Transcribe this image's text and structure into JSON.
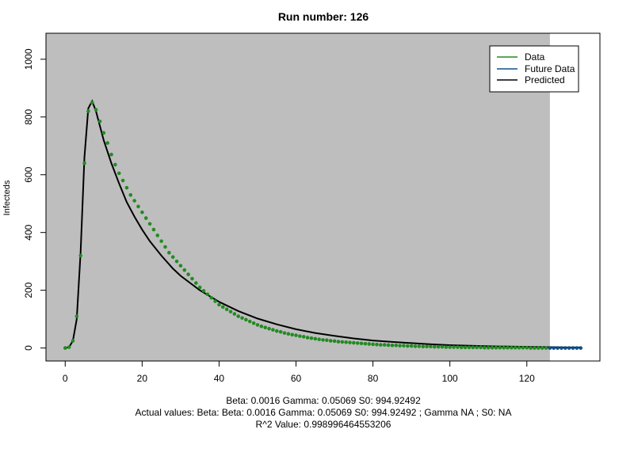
{
  "chart_data": {
    "type": "scatter",
    "title": "Run number:  126",
    "xlabel": "",
    "ylabel": "Infecteds",
    "xlim": [
      -5,
      139
    ],
    "ylim": [
      -45,
      1090
    ],
    "xticks": [
      0,
      20,
      40,
      60,
      80,
      100,
      120
    ],
    "yticks": [
      0,
      200,
      400,
      600,
      800,
      1000
    ],
    "shaded_region_x": [
      -5,
      126
    ],
    "colors": {
      "shading": "#bebebe",
      "data": "#228b22",
      "future": "#104e8b",
      "predicted": "#000000"
    },
    "legend": {
      "position": "top-right",
      "entries": [
        "Data",
        "Future Data",
        "Predicted"
      ]
    },
    "series": [
      {
        "name": "Data",
        "x": [
          0,
          1,
          2,
          3,
          4,
          5,
          6,
          7,
          8,
          9,
          10,
          11,
          12,
          13,
          14,
          15,
          16,
          17,
          18,
          19,
          20,
          21,
          22,
          23,
          24,
          25,
          26,
          27,
          28,
          29,
          30,
          31,
          32,
          33,
          34,
          35,
          36,
          37,
          38,
          39,
          40,
          41,
          42,
          43,
          44,
          45,
          46,
          47,
          48,
          49,
          50,
          51,
          52,
          53,
          54,
          55,
          56,
          57,
          58,
          59,
          60,
          61,
          62,
          63,
          64,
          65,
          66,
          67,
          68,
          69,
          70,
          71,
          72,
          73,
          74,
          75,
          76,
          77,
          78,
          79,
          80,
          81,
          82,
          83,
          84,
          85,
          86,
          87,
          88,
          89,
          90,
          91,
          92,
          93,
          94,
          95,
          96,
          97,
          98,
          99,
          100,
          101,
          102,
          103,
          104,
          105,
          106,
          107,
          108,
          109,
          110,
          111,
          112,
          113,
          114,
          115,
          116,
          117,
          118,
          119,
          120,
          121,
          122,
          123,
          124,
          125
        ],
        "values": [
          0,
          3,
          25,
          110,
          320,
          640,
          820,
          850,
          825,
          785,
          745,
          710,
          670,
          635,
          605,
          580,
          555,
          530,
          510,
          490,
          470,
          450,
          430,
          410,
          390,
          370,
          350,
          330,
          315,
          300,
          285,
          270,
          255,
          240,
          225,
          210,
          198,
          186,
          174,
          162,
          150,
          142,
          134,
          126,
          118,
          110,
          104,
          98,
          92,
          86,
          80,
          75,
          71,
          67,
          63,
          59,
          56,
          52,
          49,
          46,
          44,
          41,
          39,
          36,
          34,
          32,
          30,
          28,
          27,
          25,
          24,
          22,
          21,
          20,
          19,
          18,
          17,
          16,
          15,
          14,
          13,
          12,
          11,
          11,
          10,
          9,
          9,
          8,
          8,
          7,
          7,
          6,
          6,
          5,
          5,
          5,
          4,
          4,
          4,
          3,
          3,
          3,
          3,
          2,
          2,
          2,
          2,
          2,
          2,
          1,
          1,
          1,
          1,
          1,
          1,
          1,
          1,
          1,
          1,
          1,
          1,
          0,
          0,
          0,
          0,
          0
        ]
      },
      {
        "name": "Future Data",
        "x": [
          126,
          127,
          128,
          129,
          130,
          131,
          132,
          133,
          134
        ],
        "values": [
          0,
          0,
          0,
          0,
          0,
          0,
          0,
          0,
          0
        ]
      },
      {
        "name": "Predicted",
        "x": [
          0,
          1,
          2,
          3,
          4,
          5,
          6,
          7,
          8,
          9,
          10,
          12,
          14,
          16,
          18,
          20,
          22,
          25,
          28,
          30,
          35,
          40,
          45,
          50,
          55,
          60,
          65,
          70,
          75,
          80,
          85,
          90,
          95,
          100,
          110,
          120,
          126,
          130,
          134
        ],
        "values": [
          0,
          3,
          25,
          100,
          330,
          660,
          830,
          855,
          820,
          770,
          720,
          640,
          570,
          505,
          455,
          410,
          370,
          320,
          275,
          250,
          200,
          160,
          128,
          102,
          82,
          65,
          52,
          42,
          33,
          26,
          21,
          17,
          13,
          10,
          6,
          4,
          3,
          2,
          2
        ]
      }
    ],
    "footer": [
      "Beta:  0.0016 Gamma:  0.05069 S0:  994.92492",
      "Actual values: Beta:  Beta:  0.0016 Gamma:  0.05069 S0:  994.92492  ; Gamma  NA ; S0:  NA",
      "R^2 Value:  0.998996464553206"
    ]
  }
}
